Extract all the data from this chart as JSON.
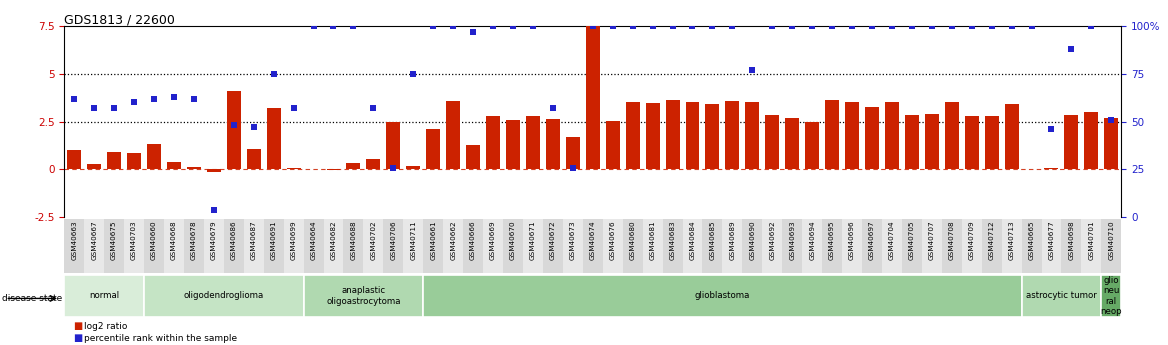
{
  "title": "GDS1813 / 22600",
  "samples": [
    "GSM40663",
    "GSM40667",
    "GSM40675",
    "GSM40703",
    "GSM40660",
    "GSM40668",
    "GSM40678",
    "GSM40679",
    "GSM40686",
    "GSM40687",
    "GSM40691",
    "GSM40699",
    "GSM40664",
    "GSM40682",
    "GSM40688",
    "GSM40702",
    "GSM40706",
    "GSM40711",
    "GSM40661",
    "GSM40662",
    "GSM40666",
    "GSM40669",
    "GSM40670",
    "GSM40671",
    "GSM40672",
    "GSM40673",
    "GSM40674",
    "GSM40676",
    "GSM40680",
    "GSM40681",
    "GSM40683",
    "GSM40684",
    "GSM40685",
    "GSM40689",
    "GSM40690",
    "GSM40692",
    "GSM40693",
    "GSM40694",
    "GSM40695",
    "GSM40696",
    "GSM40697",
    "GSM40704",
    "GSM40705",
    "GSM40707",
    "GSM40708",
    "GSM40709",
    "GSM40712",
    "GSM40713",
    "GSM40665",
    "GSM40677",
    "GSM40698",
    "GSM40701",
    "GSM40710"
  ],
  "log2_ratio": [
    1.0,
    0.3,
    0.9,
    0.85,
    1.35,
    0.4,
    0.15,
    -0.15,
    4.1,
    1.05,
    3.2,
    0.1,
    0.05,
    -0.05,
    0.35,
    0.55,
    2.5,
    0.2,
    2.1,
    3.6,
    1.3,
    2.8,
    2.6,
    2.8,
    2.65,
    1.7,
    7.5,
    2.55,
    3.55,
    3.45,
    3.65,
    3.5,
    3.4,
    3.6,
    3.55,
    2.85,
    2.7,
    2.5,
    3.65,
    3.5,
    3.25,
    3.55,
    2.85,
    2.9,
    3.55,
    2.8,
    2.8,
    3.4,
    0.0,
    0.1,
    2.85,
    3.0,
    2.7
  ],
  "percentile": [
    62,
    57,
    57,
    60,
    62,
    63,
    62,
    4,
    48,
    47,
    75,
    57,
    100,
    100,
    100,
    57,
    26,
    75,
    100,
    100,
    97,
    100,
    100,
    100,
    57,
    26,
    100,
    100,
    100,
    100,
    100,
    100,
    100,
    100,
    77,
    100,
    100,
    100,
    100,
    100,
    100,
    100,
    100,
    100,
    100,
    100,
    100,
    100,
    100,
    46,
    88,
    100,
    51
  ],
  "disease_groups": [
    {
      "label": "normal",
      "start": 0,
      "end": 4,
      "color": "#d9edd9"
    },
    {
      "label": "oligodendroglioma",
      "start": 4,
      "end": 12,
      "color": "#c5e4c5"
    },
    {
      "label": "anaplastic\noligoastrocytoma",
      "start": 12,
      "end": 18,
      "color": "#b0d9b0"
    },
    {
      "label": "glioblastoma",
      "start": 18,
      "end": 48,
      "color": "#99cc99"
    },
    {
      "label": "astrocytic tumor",
      "start": 48,
      "end": 52,
      "color": "#b0d9b0"
    },
    {
      "label": "glio\nneu\nral\nneop",
      "start": 52,
      "end": 53,
      "color": "#66aa66"
    }
  ],
  "bar_color": "#cc2200",
  "dot_color": "#2222cc",
  "left_ylim": [
    -2.5,
    7.5
  ],
  "right_ylim": [
    0,
    100
  ],
  "left_yticks": [
    -2.5,
    0,
    2.5,
    5.0,
    7.5
  ],
  "right_yticks": [
    0,
    25,
    50,
    75,
    100
  ],
  "hline_dotted": [
    2.5,
    5.0
  ],
  "zero_line": 0.0,
  "legend_items": [
    {
      "label": "log2 ratio",
      "color": "#cc2200"
    },
    {
      "label": "percentile rank within the sample",
      "color": "#2222cc"
    }
  ]
}
